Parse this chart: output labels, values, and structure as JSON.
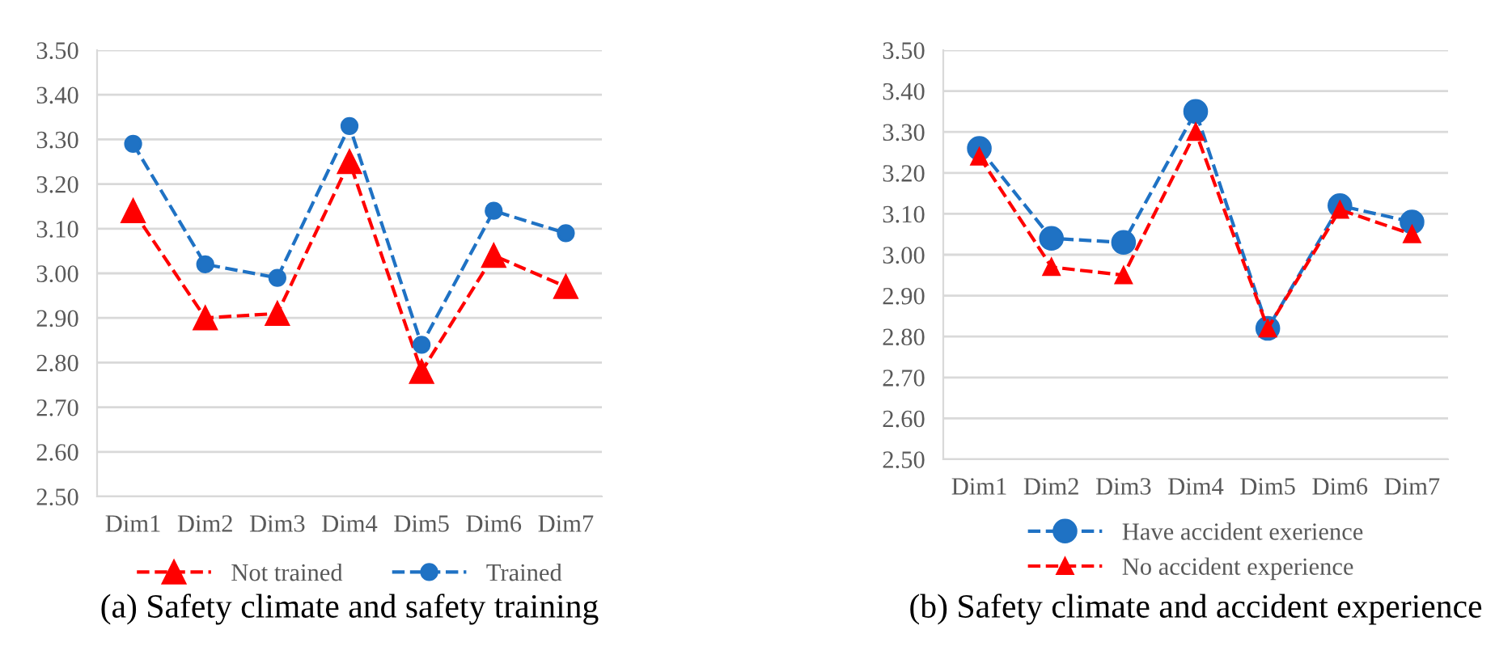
{
  "chart_data": [
    {
      "type": "line",
      "title": "(a) Safety climate and safety training",
      "categories": [
        "Dim1",
        "Dim2",
        "Dim3",
        "Dim4",
        "Dim5",
        "Dim6",
        "Dim7"
      ],
      "series": [
        {
          "name": "Not trained",
          "color": "#ff0000",
          "marker": "triangle",
          "values": [
            3.14,
            2.9,
            2.91,
            3.25,
            2.78,
            3.04,
            2.97
          ]
        },
        {
          "name": "Trained",
          "color": "#1f72c4",
          "marker": "circle",
          "values": [
            3.29,
            3.02,
            2.99,
            3.33,
            2.84,
            3.14,
            3.09
          ]
        }
      ],
      "ylim": [
        2.5,
        3.5
      ],
      "yticks": [
        {
          "value": 2.5,
          "label": "2.50"
        },
        {
          "value": 2.6,
          "label": "2.60"
        },
        {
          "value": 2.7,
          "label": "2.70"
        },
        {
          "value": 2.8,
          "label": "2.80"
        },
        {
          "value": 2.9,
          "label": "2.90"
        },
        {
          "value": 3.0,
          "label": "3.00"
        },
        {
          "value": 3.1,
          "label": "3.10"
        },
        {
          "value": 3.2,
          "label": "3.20"
        },
        {
          "value": 3.3,
          "label": "3.30"
        },
        {
          "value": 3.4,
          "label": "3.40"
        },
        {
          "value": 3.5,
          "label": "3.50"
        }
      ],
      "grid": "y",
      "legend": "bottom",
      "line_style": "dashed"
    },
    {
      "type": "line",
      "title": "(b) Safety climate and accident experience",
      "categories": [
        "Dim1",
        "Dim2",
        "Dim3",
        "Dim4",
        "Dim5",
        "Dim6",
        "Dim7"
      ],
      "series": [
        {
          "name": "Have accident exerience",
          "color": "#1f72c4",
          "marker": "circle",
          "values": [
            3.26,
            3.04,
            3.03,
            3.35,
            2.82,
            3.12,
            3.08
          ]
        },
        {
          "name": "No accident experience",
          "color": "#ff0000",
          "marker": "triangle",
          "values": [
            3.24,
            2.97,
            2.95,
            3.3,
            2.82,
            3.11,
            3.05
          ]
        }
      ],
      "ylim": [
        2.5,
        3.5
      ],
      "yticks": [
        {
          "value": 2.5,
          "label": "2.50"
        },
        {
          "value": 2.6,
          "label": "2.60"
        },
        {
          "value": 2.7,
          "label": "2.70"
        },
        {
          "value": 2.8,
          "label": "2.80"
        },
        {
          "value": 2.9,
          "label": "2.90"
        },
        {
          "value": 3.0,
          "label": "3.00"
        },
        {
          "value": 3.1,
          "label": "3.10"
        },
        {
          "value": 3.2,
          "label": "3.20"
        },
        {
          "value": 3.3,
          "label": "3.30"
        },
        {
          "value": 3.4,
          "label": "3.40"
        },
        {
          "value": 3.5,
          "label": "3.50"
        }
      ],
      "grid": "y",
      "legend": "bottom",
      "line_style": "dashed"
    }
  ]
}
